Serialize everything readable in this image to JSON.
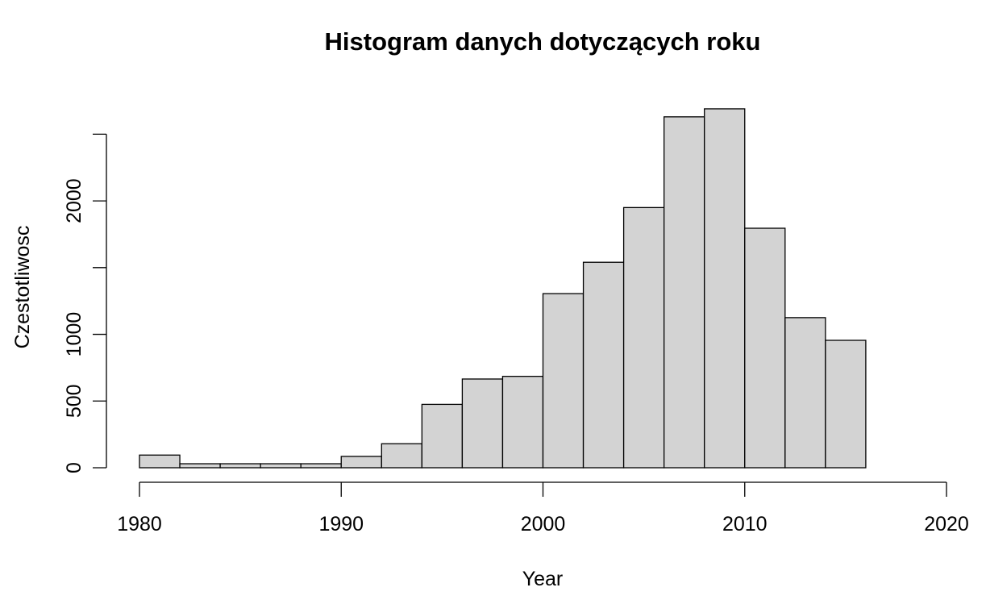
{
  "chart_data": {
    "type": "bar",
    "title": "Histogram danych dotyczących roku",
    "xlabel": "Year",
    "ylabel": "Czestotliwosc",
    "bin_width": 2,
    "bins": [
      {
        "start": 1980,
        "end": 1982,
        "count": 95
      },
      {
        "start": 1982,
        "end": 1984,
        "count": 30
      },
      {
        "start": 1984,
        "end": 1986,
        "count": 30
      },
      {
        "start": 1986,
        "end": 1988,
        "count": 30
      },
      {
        "start": 1988,
        "end": 1990,
        "count": 30
      },
      {
        "start": 1990,
        "end": 1992,
        "count": 85
      },
      {
        "start": 1992,
        "end": 1994,
        "count": 180
      },
      {
        "start": 1994,
        "end": 1996,
        "count": 475
      },
      {
        "start": 1996,
        "end": 1998,
        "count": 665
      },
      {
        "start": 1998,
        "end": 2000,
        "count": 685
      },
      {
        "start": 2000,
        "end": 2002,
        "count": 1305
      },
      {
        "start": 2002,
        "end": 2004,
        "count": 1540
      },
      {
        "start": 2004,
        "end": 2006,
        "count": 1950
      },
      {
        "start": 2006,
        "end": 2008,
        "count": 2630
      },
      {
        "start": 2008,
        "end": 2010,
        "count": 2690
      },
      {
        "start": 2010,
        "end": 2012,
        "count": 1795
      },
      {
        "start": 2012,
        "end": 2014,
        "count": 1125
      },
      {
        "start": 2014,
        "end": 2016,
        "count": 955
      },
      {
        "start": 2016,
        "end": 2018,
        "count": 0
      },
      {
        "start": 2018,
        "end": 2020,
        "count": 0
      }
    ],
    "x_ticks": [
      1980,
      1990,
      2000,
      2010,
      2020
    ],
    "y_ticks": [
      0,
      500,
      1000,
      1500,
      2000,
      2500
    ],
    "y_tick_labels": [
      "0",
      "500",
      "1000",
      "",
      "2000",
      ""
    ],
    "xlim": [
      1980,
      2020
    ],
    "ylim": [
      0,
      2500
    ],
    "bar_color": "#d3d3d3",
    "grid": false
  }
}
